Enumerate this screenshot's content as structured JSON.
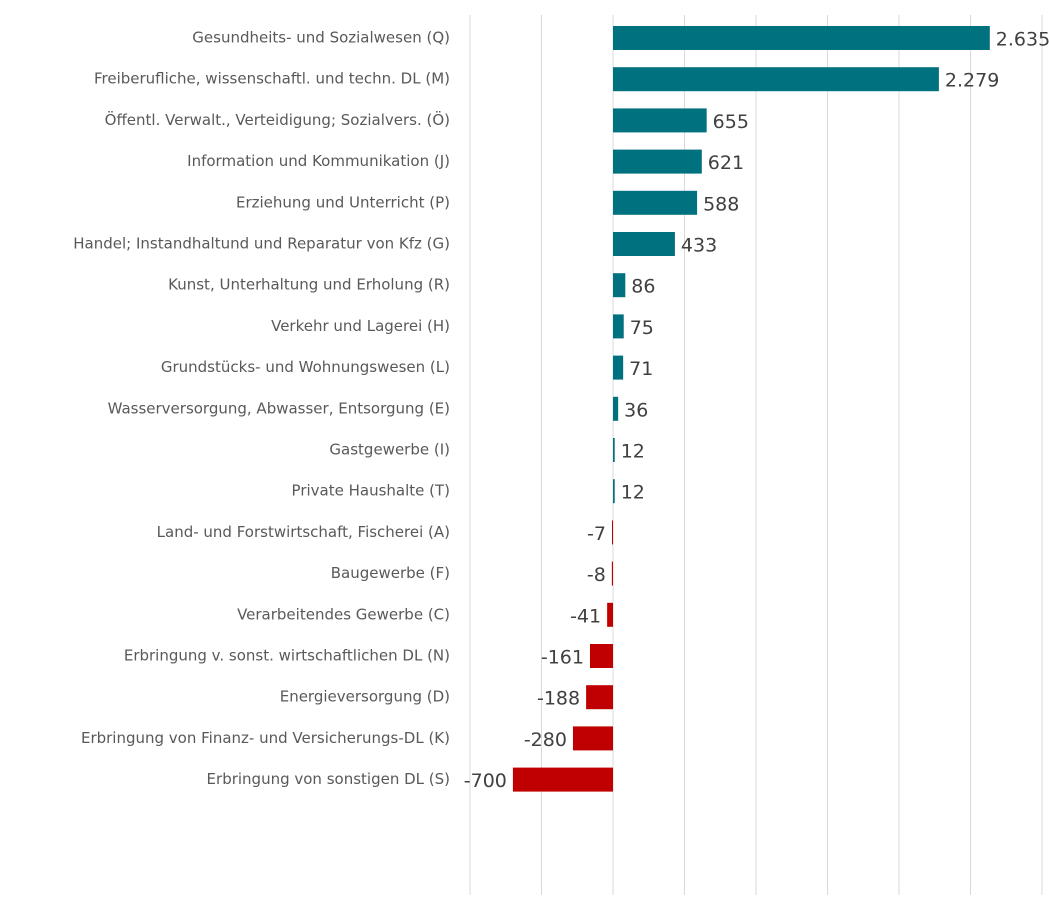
{
  "chart_data": {
    "type": "bar",
    "orientation": "horizontal",
    "categories": [
      "Gesundheits- und Sozialwesen (Q)",
      "Freiberufliche, wissenschaftl. und techn. DL (M)",
      "Öffentl. Verwalt., Verteidigung; Sozialvers. (Ö)",
      "Information und Kommunikation (J)",
      "Erziehung und Unterricht (P)",
      "Handel; Instandhaltund und Reparatur von Kfz (G)",
      "Kunst, Unterhaltung und Erholung (R)",
      "Verkehr und Lagerei (H)",
      "Grundstücks- und Wohnungswesen (L)",
      "Wasserversorgung, Abwasser, Entsorgung (E)",
      "Gastgewerbe (I)",
      "Private Haushalte (T)",
      "Land- und Forstwirtschaft, Fischerei (A)",
      "Baugewerbe (F)",
      "Verarbeitendes Gewerbe (C)",
      "Erbringung v. sonst. wirtschaftlichen DL (N)",
      "Energieversorgung (D)",
      "Erbringung von Finanz- und Versicherungs-DL (K)",
      "Erbringung von sonstigen DL (S)"
    ],
    "values": [
      2635,
      2279,
      655,
      621,
      588,
      433,
      86,
      75,
      71,
      36,
      12,
      12,
      -7,
      -8,
      -41,
      -161,
      -188,
      -280,
      -700
    ],
    "value_labels": [
      "2.635",
      "2.279",
      "655",
      "621",
      "588",
      "433",
      "86",
      "75",
      "71",
      "36",
      "12",
      "12",
      "-7",
      "-8",
      "-41",
      "-161",
      "-188",
      "-280",
      "-700"
    ],
    "positive_color": "#00717f",
    "negative_color": "#c00000",
    "xlim": [
      -1000,
      3000
    ],
    "xticks": [
      -1000,
      -500,
      0,
      500,
      1000,
      1500,
      2000,
      2500,
      3000
    ],
    "grid": true
  }
}
